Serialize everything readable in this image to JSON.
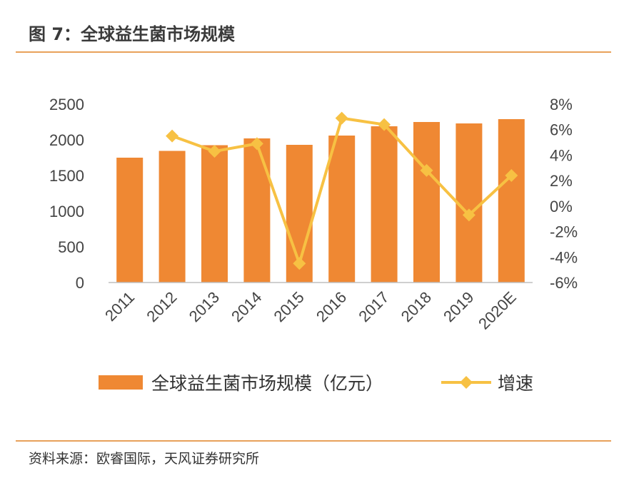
{
  "figure": {
    "title": "图 7：全球益生菌市场规模",
    "source": "资料来源：欧睿国际，天风证券研究所"
  },
  "colors": {
    "bar": "#ef8833",
    "line": "#f7c143",
    "rule": "#e8a15a"
  },
  "chart_data": {
    "type": "bar",
    "categories": [
      "2011",
      "2012",
      "2013",
      "2014",
      "2015",
      "2016",
      "2017",
      "2018",
      "2019",
      "2020E"
    ],
    "series": [
      {
        "name": "全球益生菌市场规模（亿元）",
        "type": "bar",
        "axis": "left",
        "values": [
          1750,
          1845,
          1925,
          2020,
          1930,
          2060,
          2190,
          2250,
          2230,
          2290
        ]
      },
      {
        "name": "增速",
        "type": "line",
        "axis": "right",
        "values": [
          null,
          5.5,
          4.3,
          4.9,
          -4.5,
          6.9,
          6.4,
          2.8,
          -0.7,
          2.4
        ]
      }
    ],
    "y_left": {
      "lim": [
        0,
        2500
      ],
      "ticks": [
        "0",
        "500",
        "1000",
        "1500",
        "2000",
        "2500"
      ]
    },
    "y_right": {
      "lim": [
        -6,
        8
      ],
      "ticks": [
        "-6%",
        "-4%",
        "-2%",
        "0%",
        "2%",
        "4%",
        "6%",
        "8%"
      ]
    },
    "grid": false,
    "legend": "bottom"
  }
}
